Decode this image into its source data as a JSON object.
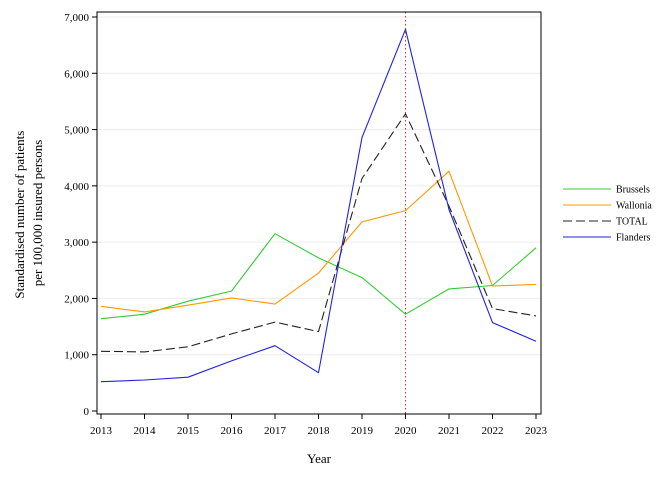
{
  "chart_data": {
    "type": "line",
    "xlabel": "Year",
    "ylabel_lines": [
      "Standardised number of patients",
      "per 100,000 insured persons"
    ],
    "x": [
      2013,
      2014,
      2015,
      2016,
      2017,
      2018,
      2019,
      2020,
      2021,
      2022,
      2023
    ],
    "x_tick_labels": [
      "2013",
      "2014",
      "2015",
      "2016",
      "2017",
      "2018",
      "2019",
      "2020",
      "2021",
      "2022",
      "2023"
    ],
    "ylim": [
      0,
      7000
    ],
    "y_ticks": [
      0,
      1000,
      2000,
      3000,
      4000,
      5000,
      6000,
      7000
    ],
    "y_tick_labels": [
      "0",
      "1,000",
      "2,000",
      "3,000",
      "4,000",
      "5,000",
      "6,000",
      "7,000"
    ],
    "grid": "horizontal",
    "reference_line": {
      "x": 2020,
      "color": "#cc3333",
      "style": "dotted"
    },
    "legend_position": "right",
    "series": [
      {
        "name": "Brussels",
        "color": "#33cc33",
        "dash": "solid",
        "values": [
          1640,
          1720,
          1950,
          2130,
          3150,
          2720,
          2370,
          1720,
          2170,
          2230,
          2900
        ]
      },
      {
        "name": "Wallonia",
        "color": "#ff9900",
        "dash": "solid",
        "values": [
          1860,
          1760,
          1880,
          2010,
          1900,
          2450,
          3360,
          3560,
          4260,
          2220,
          2250
        ]
      },
      {
        "name": "TOTAL",
        "color": "#222222",
        "dash": "dashed",
        "values": [
          1060,
          1050,
          1140,
          1370,
          1580,
          1410,
          4130,
          5280,
          3640,
          1820,
          1690
        ]
      },
      {
        "name": "Flanders",
        "color": "#2222dd",
        "dash": "solid",
        "values": [
          520,
          550,
          600,
          890,
          1160,
          680,
          4860,
          6780,
          3580,
          1570,
          1240
        ]
      }
    ]
  }
}
